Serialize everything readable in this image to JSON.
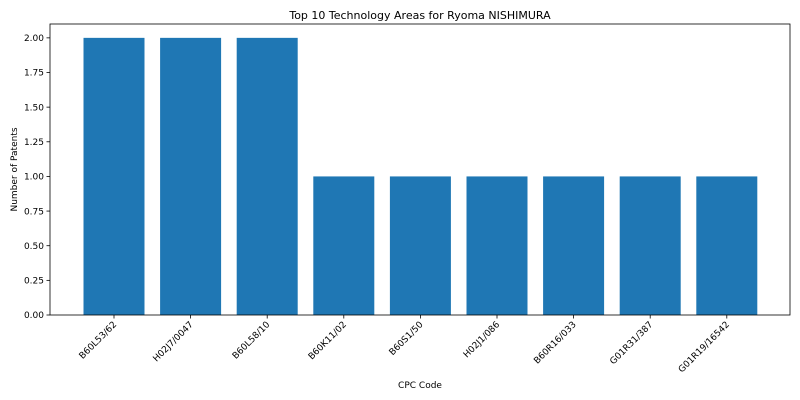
{
  "chart_data": {
    "type": "bar",
    "title": "Top 10 Technology Areas for Ryoma NISHIMURA",
    "xlabel": "CPC Code",
    "ylabel": "Number of Patents",
    "categories": [
      "B60L53/62",
      "H02J7/0047",
      "B60L58/10",
      "B60K11/02",
      "B60S1/50",
      "H02J1/086",
      "B60R16/033",
      "G01R31/387",
      "G01R19/16542"
    ],
    "values": [
      2,
      2,
      2,
      1,
      1,
      1,
      1,
      1,
      1
    ],
    "ylim": [
      0,
      2.1
    ],
    "yticks": [
      "0.00",
      "0.25",
      "0.50",
      "0.75",
      "1.00",
      "1.25",
      "1.50",
      "1.75",
      "2.00"
    ],
    "grid": false,
    "bar_color": "#1f77b4"
  }
}
